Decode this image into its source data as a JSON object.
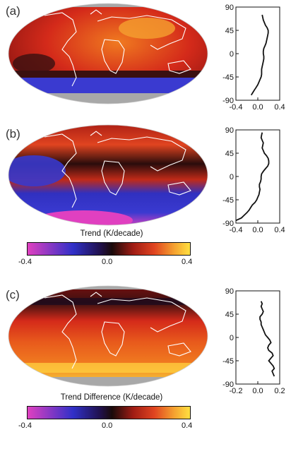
{
  "panels": [
    {
      "label": "(a)"
    },
    {
      "label": "(b)"
    },
    {
      "label": "(c)"
    }
  ],
  "colorbars": [
    {
      "title": "Trend (K/decade)",
      "ticks": [
        "-0.4",
        "0.0",
        "0.4"
      ]
    },
    {
      "title": "Trend Difference (K/decade)",
      "ticks": [
        "-0.4",
        "0.0",
        "0.4"
      ]
    }
  ],
  "colors": {
    "magenta": "#e040c0",
    "blue": "#3333cc",
    "dark": "#1a0a0a",
    "red": "#d42a1a",
    "orange": "#f07a20",
    "yellow": "#ffe040",
    "land_outline": "#ffffff",
    "polar_gray": "#a8a8a8"
  },
  "chart_data": [
    {
      "panel": "(a)",
      "type": "line",
      "ylabel": "",
      "ylim": [
        -90,
        90
      ],
      "xlim": [
        -0.4,
        0.4
      ],
      "yticks": [
        "90",
        "45",
        "0",
        "-45",
        "-90"
      ],
      "xticks": [
        "-0.4",
        "0.0",
        "0.4"
      ],
      "lat": [
        -80,
        -75,
        -70,
        -65,
        -60,
        -55,
        -50,
        -45,
        -40,
        -35,
        -30,
        -25,
        -20,
        -15,
        -10,
        -5,
        0,
        5,
        10,
        15,
        20,
        25,
        30,
        35,
        40,
        45,
        50,
        55,
        60,
        65,
        70,
        75
      ],
      "trend": [
        -0.12,
        -0.09,
        -0.06,
        -0.03,
        0.0,
        0.02,
        0.04,
        0.06,
        0.07,
        0.07,
        0.07,
        0.08,
        0.09,
        0.1,
        0.11,
        0.11,
        0.1,
        0.1,
        0.11,
        0.13,
        0.15,
        0.16,
        0.17,
        0.18,
        0.19,
        0.19,
        0.17,
        0.14,
        0.12,
        0.1,
        0.09,
        0.08
      ]
    },
    {
      "panel": "(b)",
      "type": "line",
      "ylabel": "",
      "ylim": [
        -90,
        90
      ],
      "xlim": [
        -0.4,
        0.4
      ],
      "yticks": [
        "90",
        "45",
        "0",
        "-45",
        "-90"
      ],
      "xticks": [
        "-0.4",
        "0.0",
        "0.4"
      ],
      "lat": [
        -85,
        -80,
        -75,
        -70,
        -65,
        -60,
        -55,
        -50,
        -45,
        -40,
        -35,
        -30,
        -25,
        -20,
        -15,
        -10,
        -5,
        0,
        5,
        10,
        15,
        20,
        25,
        30,
        35,
        40,
        45,
        50,
        55,
        60,
        65,
        70,
        75,
        80,
        85
      ],
      "trend": [
        -0.4,
        -0.3,
        -0.25,
        -0.2,
        -0.16,
        -0.13,
        -0.1,
        -0.05,
        -0.02,
        0.0,
        0.02,
        0.03,
        0.04,
        0.03,
        0.03,
        0.05,
        0.06,
        0.06,
        0.07,
        0.1,
        0.14,
        0.18,
        0.2,
        0.2,
        0.19,
        0.16,
        0.12,
        0.1,
        0.08,
        0.09,
        0.1,
        0.08,
        0.06,
        0.07,
        0.08
      ]
    },
    {
      "panel": "(c)",
      "type": "line",
      "ylabel": "",
      "ylim": [
        -90,
        90
      ],
      "xlim": [
        -0.2,
        0.2
      ],
      "yticks": [
        "90",
        "45",
        "0",
        "-45",
        "-90"
      ],
      "xticks": [
        "-0.2",
        "0.0",
        "0.2"
      ],
      "lat": [
        -75,
        -70,
        -65,
        -60,
        -55,
        -50,
        -45,
        -40,
        -35,
        -30,
        -25,
        -20,
        -15,
        -10,
        -5,
        0,
        5,
        10,
        15,
        20,
        25,
        30,
        35,
        40,
        45,
        50,
        55,
        60,
        65,
        70
      ],
      "trend": [
        0.15,
        0.14,
        0.13,
        0.15,
        0.14,
        0.12,
        0.1,
        0.12,
        0.14,
        0.13,
        0.1,
        0.09,
        0.1,
        0.12,
        0.11,
        0.09,
        0.07,
        0.06,
        0.05,
        0.04,
        0.03,
        0.03,
        0.02,
        0.02,
        0.04,
        0.05,
        0.04,
        0.03,
        0.04,
        0.03
      ]
    }
  ]
}
